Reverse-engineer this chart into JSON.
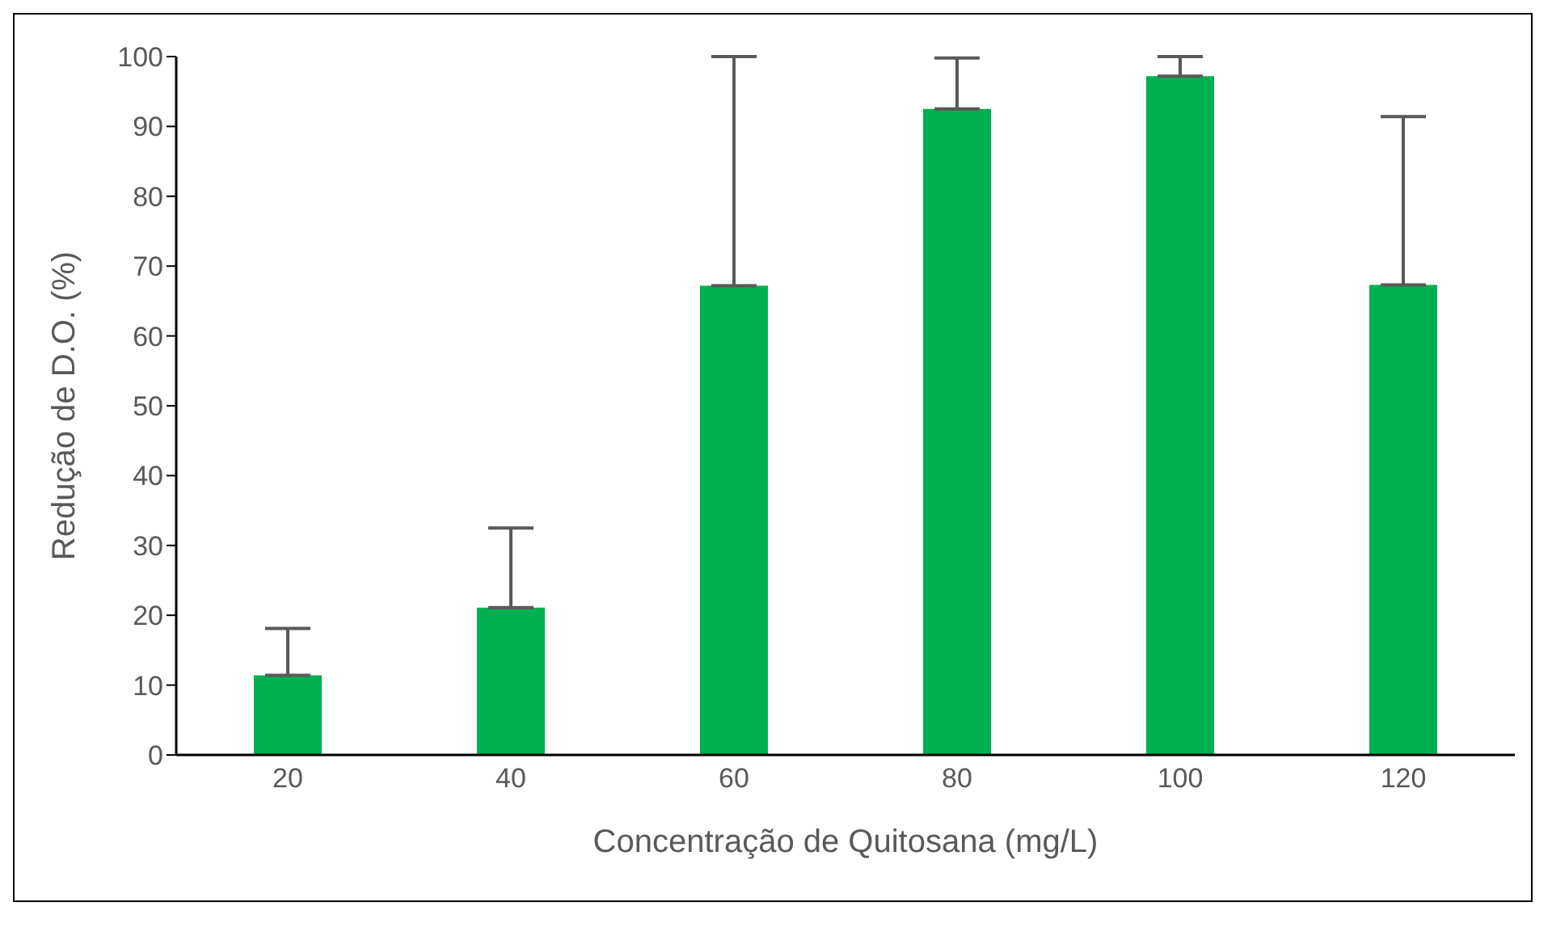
{
  "chart_data": {
    "type": "bar",
    "xlabel": "Concentração de Quitosana (mg/L)",
    "ylabel": "Redução de D.O. (%)",
    "categories": [
      "20",
      "40",
      "60",
      "80",
      "100",
      "120"
    ],
    "values": [
      11.4,
      21.1,
      67.2,
      92.5,
      97.2,
      67.3
    ],
    "errors": [
      [
        11.4,
        18.1
      ],
      [
        21.1,
        32.5
      ],
      [
        67.2,
        100
      ],
      [
        92.5,
        99.8
      ],
      [
        97.2,
        100
      ],
      [
        67.3,
        91.4
      ]
    ],
    "color": "#00b050",
    "ylim": [
      0,
      100
    ],
    "yticks": [
      0,
      10,
      20,
      30,
      40,
      50,
      60,
      70,
      80,
      90,
      100
    ],
    "grid": false,
    "legend": false
  }
}
